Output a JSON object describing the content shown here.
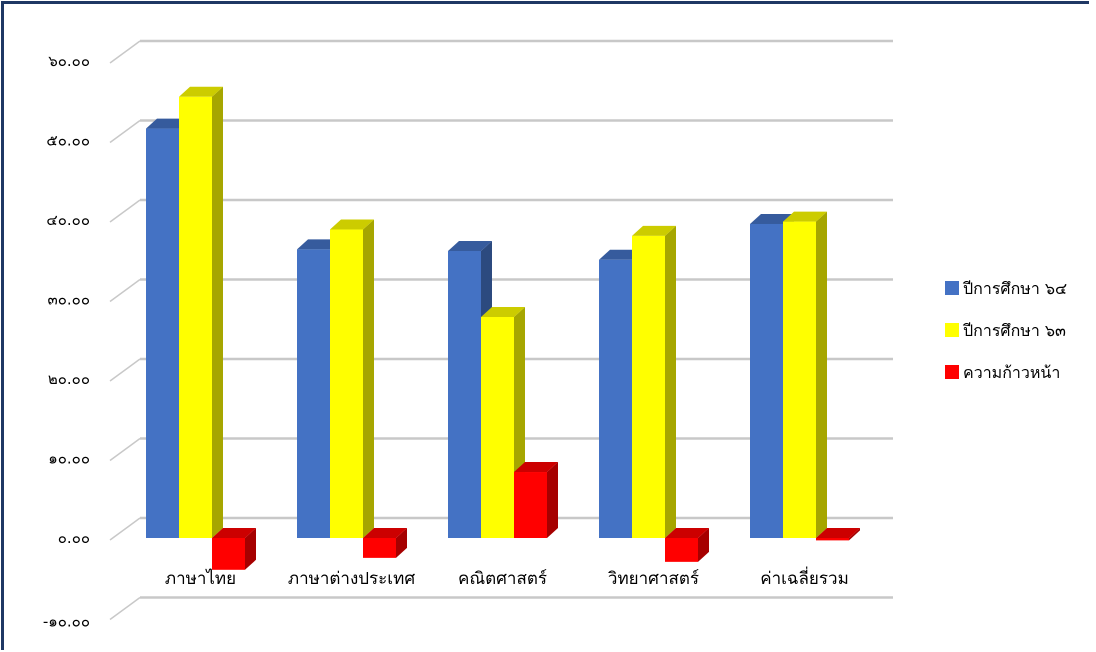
{
  "chart_data": {
    "type": "bar",
    "categories": [
      "ภาษาไทย",
      "ภาษาต่างประเทศ",
      "คณิตศาสตร์",
      "วิทยาศาสตร์",
      "ค่าเฉลี่ยรวม"
    ],
    "series": [
      {
        "name": "ปีการศึกษา ๖๔",
        "color": "#4472c4",
        "values": [
          51.5,
          36.3,
          36.1,
          35.0,
          39.5
        ]
      },
      {
        "name": "ปีการศึกษา ๖๓",
        "color": "#ffff00",
        "values": [
          55.5,
          38.8,
          27.8,
          38.0,
          39.8
        ]
      },
      {
        "name": "ความก้าวหน้า",
        "color": "#ff0000",
        "values": [
          -4.0,
          -2.5,
          8.3,
          -3.0,
          -0.3
        ]
      }
    ],
    "yticks": [
      "-๑๐.๐๐",
      "๐.๐๐",
      "๑๐.๐๐",
      "๒๐.๐๐",
      "๓๐.๐๐",
      "๔๐.๐๐",
      "๕๐.๐๐",
      "๖๐.๐๐"
    ],
    "ylim": [
      -10,
      60
    ],
    "grid": true,
    "legend_position": "right"
  }
}
